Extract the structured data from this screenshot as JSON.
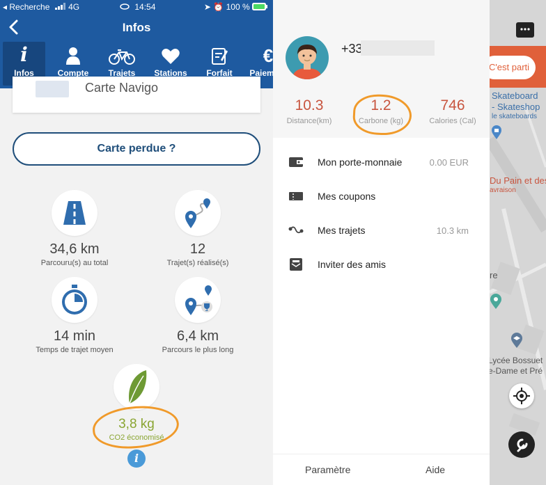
{
  "status_bar": {
    "carrier": "◂ Recherche",
    "network": "4G",
    "time": "14:54",
    "battery": "100 %"
  },
  "header": {
    "title": "Infos"
  },
  "tabs": [
    {
      "label": "Infos",
      "icon": "info-icon",
      "active": true
    },
    {
      "label": "Compte",
      "icon": "person-icon"
    },
    {
      "label": "Trajets",
      "icon": "bicycle-icon"
    },
    {
      "label": "Stations",
      "icon": "heart-icon"
    },
    {
      "label": "Forfait",
      "icon": "edit-icon"
    },
    {
      "label": "Paiement",
      "icon": "euro-icon"
    }
  ],
  "card": {
    "title": "Carte Navigo"
  },
  "lost_card_button": "Carte perdue ?",
  "stats": {
    "distance": {
      "value": "34,6 km",
      "label": "Parcouru(s) au total",
      "icon": "road-icon"
    },
    "trips": {
      "value": "12",
      "label": "Trajet(s) réalisé(s)",
      "icon": "route-icon"
    },
    "avg_time": {
      "value": "14 min",
      "label": "Temps de trajet moyen",
      "icon": "stopwatch-icon"
    },
    "longest": {
      "value": "6,4 km",
      "label": "Parcours le plus long",
      "icon": "trophy-route-icon"
    },
    "co2": {
      "value": "3,8 kg",
      "label": "CO2 économisé",
      "icon": "leaf-icon"
    }
  },
  "colors": {
    "primary": "#1e5aa0",
    "dark_blue": "#1f4e7a",
    "green": "#8aa532",
    "accent_red": "#c8553f",
    "highlight": "#f09a2a",
    "map_orange": "#e0603a"
  },
  "drawer": {
    "phone": "+33",
    "stats": [
      {
        "value": "10.3",
        "label": "Distance(km)"
      },
      {
        "value": "1.2",
        "label": "Carbone (kg)"
      },
      {
        "value": "746",
        "label": "Calories (Cal)"
      }
    ],
    "menu": [
      {
        "label": "Mon porte-monnaie",
        "value": "0.00 EUR",
        "icon": "wallet-icon"
      },
      {
        "label": "Mes coupons",
        "value": "",
        "icon": "coupon-icon"
      },
      {
        "label": "Mes trajets",
        "value": "10.3 km",
        "icon": "trip-path-icon"
      },
      {
        "label": "Inviter des amis",
        "value": "",
        "icon": "invite-icon"
      }
    ],
    "footer": {
      "settings": "Paramètre",
      "help": "Aide"
    }
  },
  "map": {
    "banner": "C'est parti",
    "labels": [
      "Skateboard",
      "- Skateshop",
      "le skateboards",
      "Du Pain et des",
      "avraison",
      "re",
      "Lycée Bossuet",
      "e-Dame et Pré"
    ]
  }
}
